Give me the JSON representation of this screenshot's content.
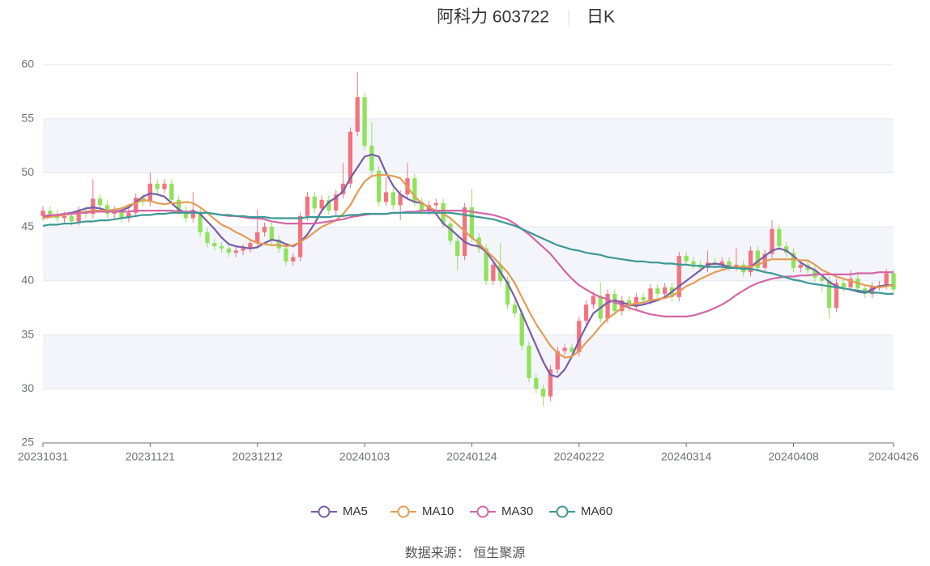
{
  "chart_data": {
    "type": "candlestick",
    "title": "阿科力 603722",
    "period": "日K",
    "source": "数据来源： 恒生聚源",
    "up_color": "#f2737f",
    "down_color": "#8fe25a",
    "split_area": true,
    "ylim": [
      25,
      60
    ],
    "yticks": [
      25,
      30,
      35,
      40,
      45,
      50,
      55,
      60
    ],
    "categories": [
      "20231031",
      null,
      null,
      null,
      null,
      null,
      null,
      null,
      null,
      null,
      null,
      null,
      null,
      null,
      null,
      "20231121",
      null,
      null,
      null,
      null,
      null,
      null,
      null,
      null,
      null,
      null,
      null,
      null,
      null,
      null,
      "20231212",
      null,
      null,
      null,
      null,
      null,
      null,
      null,
      null,
      null,
      null,
      null,
      null,
      null,
      null,
      "20240103",
      null,
      null,
      null,
      null,
      null,
      null,
      null,
      null,
      null,
      null,
      null,
      null,
      null,
      null,
      "20240124",
      null,
      null,
      null,
      null,
      null,
      null,
      null,
      null,
      null,
      null,
      null,
      null,
      null,
      null,
      "20240222",
      null,
      null,
      null,
      null,
      null,
      null,
      null,
      null,
      null,
      null,
      null,
      null,
      null,
      null,
      "20240314",
      null,
      null,
      null,
      null,
      null,
      null,
      null,
      null,
      null,
      null,
      null,
      null,
      null,
      null,
      "20240408",
      null,
      null,
      null,
      null,
      null,
      null,
      null,
      null,
      null,
      null,
      null,
      null,
      null,
      "20240426"
    ],
    "open": [
      46.0,
      46.5,
      46.2,
      45.8,
      46.0,
      45.5,
      46.5,
      46.2,
      47.6,
      47.0,
      46.2,
      46.5,
      45.8,
      46.3,
      47.7,
      47.3,
      49.0,
      48.5,
      49.0,
      47.5,
      46.5,
      45.8,
      46.3,
      44.5,
      43.5,
      43.2,
      43.0,
      42.6,
      42.8,
      43.0,
      43.5,
      44.5,
      45.0,
      43.8,
      43.0,
      41.8,
      42.2,
      46.0,
      47.8,
      46.7,
      47.5,
      46.5,
      48.0,
      49.0,
      53.8,
      57.0,
      52.5,
      50.2,
      47.3,
      48.2,
      47.0,
      48.0,
      49.5,
      47.3,
      46.5,
      47.0,
      47.2,
      45.3,
      43.7,
      42.3,
      46.8,
      44.0,
      43.0,
      40.0,
      41.5,
      40.0,
      37.8,
      37.0,
      34.0,
      31.0,
      30.0,
      29.3,
      31.8,
      33.5,
      33.8,
      33.4,
      36.3,
      37.8,
      38.6,
      36.5,
      38.8,
      37.2,
      38.2,
      37.6,
      38.5,
      38.2,
      39.3,
      38.8,
      39.4,
      38.5,
      42.3,
      41.8,
      41.5,
      41.2,
      41.7,
      41.5,
      41.8,
      41.3,
      41.5,
      40.8,
      42.8,
      41.2,
      42.5,
      44.8,
      43.2,
      42.6,
      41.2,
      41.5,
      41.0,
      40.3,
      40.0,
      37.5,
      39.8,
      39.4,
      40.2,
      39.3,
      38.8,
      39.5,
      39.6,
      40.7
    ],
    "close": [
      46.5,
      46.2,
      45.8,
      46.0,
      45.5,
      46.5,
      46.2,
      47.6,
      47.0,
      46.2,
      46.5,
      45.8,
      46.3,
      47.7,
      47.3,
      49.0,
      48.5,
      49.0,
      47.5,
      46.5,
      45.8,
      46.3,
      44.5,
      43.5,
      43.2,
      43.0,
      42.6,
      42.8,
      43.0,
      43.5,
      44.5,
      45.0,
      43.8,
      43.0,
      41.8,
      42.2,
      46.0,
      47.8,
      46.7,
      47.5,
      46.5,
      48.0,
      49.0,
      53.8,
      57.0,
      52.5,
      50.2,
      47.3,
      48.2,
      47.0,
      48.0,
      49.5,
      47.3,
      46.5,
      47.0,
      47.2,
      45.3,
      43.7,
      42.3,
      46.8,
      44.0,
      43.0,
      40.0,
      41.5,
      40.0,
      37.8,
      37.0,
      34.0,
      31.0,
      30.0,
      29.3,
      31.8,
      33.5,
      33.8,
      33.4,
      36.3,
      37.8,
      38.6,
      36.5,
      38.8,
      37.2,
      38.2,
      37.6,
      38.5,
      38.2,
      39.3,
      38.8,
      39.4,
      38.5,
      42.3,
      41.8,
      41.5,
      41.2,
      41.7,
      41.5,
      41.8,
      41.3,
      41.5,
      40.8,
      42.8,
      41.2,
      42.5,
      44.8,
      43.2,
      42.6,
      41.2,
      41.5,
      41.0,
      40.3,
      40.0,
      37.5,
      39.8,
      39.4,
      40.2,
      39.3,
      38.8,
      39.5,
      39.6,
      40.7,
      39.2
    ],
    "low": [
      45.6,
      45.8,
      45.4,
      45.4,
      45.1,
      45.1,
      45.8,
      45.8,
      46.6,
      45.8,
      45.8,
      45.4,
      45.4,
      45.9,
      46.9,
      46.9,
      48.1,
      48.1,
      47.1,
      46.1,
      45.4,
      45.4,
      44.1,
      43.1,
      42.8,
      42.6,
      42.2,
      42.2,
      42.4,
      42.6,
      43.1,
      44.1,
      43.4,
      42.6,
      41.4,
      41.4,
      41.8,
      45.6,
      46.3,
      46.3,
      46.1,
      46.1,
      47.6,
      48.6,
      53.4,
      52.1,
      49.8,
      46.9,
      46.9,
      46.6,
      45.6,
      47.6,
      46.9,
      46.1,
      46.1,
      46.6,
      44.9,
      43.3,
      41.0,
      41.9,
      43.6,
      42.6,
      39.6,
      39.6,
      39.6,
      37.4,
      36.6,
      33.6,
      30.6,
      29.6,
      28.4,
      28.9,
      31.4,
      33.1,
      33.0,
      33.0,
      35.9,
      37.4,
      36.1,
      36.1,
      36.8,
      36.8,
      37.2,
      37.2,
      37.8,
      37.8,
      38.4,
      38.4,
      38.1,
      38.1,
      41.4,
      41.1,
      40.8,
      40.8,
      41.1,
      41.1,
      40.9,
      40.9,
      40.4,
      40.4,
      40.8,
      40.8,
      42.1,
      42.8,
      42.2,
      40.8,
      40.8,
      40.6,
      39.9,
      39.0,
      36.5,
      37.1,
      39.0,
      39.0,
      38.9,
      38.4,
      38.4,
      39.1,
      39.2,
      38.8
    ],
    "high": [
      46.9,
      46.9,
      46.6,
      46.4,
      46.4,
      46.9,
      46.9,
      49.4,
      48.0,
      47.4,
      46.9,
      46.9,
      46.7,
      48.1,
      48.1,
      50.0,
      49.4,
      49.4,
      49.4,
      47.9,
      46.9,
      48.2,
      46.7,
      44.9,
      43.9,
      43.6,
      43.4,
      43.2,
      43.4,
      43.9,
      46.6,
      45.4,
      45.4,
      44.2,
      43.4,
      42.6,
      46.4,
      48.2,
      48.2,
      47.9,
      47.9,
      48.4,
      50.9,
      54.2,
      59.3,
      57.4,
      54.7,
      50.6,
      49.6,
      48.6,
      48.4,
      50.9,
      49.9,
      47.7,
      47.4,
      47.6,
      47.6,
      45.7,
      44.1,
      47.2,
      48.5,
      44.4,
      43.4,
      41.9,
      43.5,
      40.4,
      38.2,
      37.4,
      34.4,
      31.4,
      30.4,
      32.2,
      33.9,
      34.2,
      34.2,
      36.7,
      38.2,
      39.0,
      39.9,
      39.2,
      39.2,
      38.6,
      38.6,
      38.9,
      38.9,
      39.7,
      39.7,
      39.8,
      39.8,
      42.7,
      42.7,
      42.2,
      41.9,
      42.8,
      42.1,
      42.2,
      42.2,
      43.0,
      41.9,
      43.2,
      43.2,
      42.9,
      45.6,
      45.2,
      43.6,
      43.0,
      41.9,
      41.9,
      41.4,
      40.7,
      40.4,
      40.2,
      40.2,
      41.0,
      40.6,
      39.7,
      39.9,
      40.0,
      41.1,
      41.1
    ],
    "series": [
      {
        "name": "MA5",
        "color": "#7a5ca8",
        "values": [
          46,
          46,
          46.1,
          46.2,
          46.3,
          46.5,
          46.7,
          46.8,
          46.7,
          46.5,
          46.4,
          46.5,
          46.8,
          47.3,
          47.8,
          48.1,
          48,
          47.8,
          47.2,
          46.6,
          46.3,
          46.5,
          46.2,
          45.5,
          44.8,
          44,
          43.4,
          43.2,
          43.1,
          43,
          43.1,
          43.5,
          43.8,
          43.7,
          43.4,
          43.2,
          43.6,
          44.3,
          45.3,
          46.5,
          47.3,
          47.7,
          48.3,
          49.5,
          50.5,
          51.5,
          51.7,
          51.5,
          50,
          48.8,
          48,
          47.6,
          47.3,
          47.2,
          46.8,
          46.2,
          45.3,
          44.8,
          44.2,
          43.6,
          43.3,
          43.2,
          42.7,
          41.8,
          40.8,
          39.8,
          38.5,
          37,
          35.5,
          34,
          32.5,
          31.3,
          31.1,
          31.8,
          33,
          34.5,
          35.8,
          37,
          37.5,
          38,
          38.2,
          38,
          37.8,
          37.7,
          37.8,
          38,
          38.2,
          38.5,
          39,
          39.5,
          40,
          40.5,
          41,
          41.5,
          41.6,
          41.5,
          41.3,
          41.2,
          41.2,
          41.3,
          41.8,
          42.3,
          42.8,
          43,
          42.8,
          42.3,
          41.7,
          41.3,
          41,
          40.5,
          39.9,
          39.5,
          39.3,
          39.2,
          39,
          38.9,
          39.2,
          39.5,
          39.6,
          39.6
        ]
      },
      {
        "name": "MA10",
        "color": "#e39c55",
        "values": [
          45.8,
          45.9,
          46,
          46.1,
          46.2,
          46.3,
          46.4,
          46.5,
          46.5,
          46.5,
          46.6,
          46.7,
          47,
          47.2,
          47.5,
          47.4,
          47.2,
          47.1,
          47.2,
          47.2,
          47.3,
          47.2,
          46.8,
          46.3,
          45.7,
          45.2,
          44.9,
          44.5,
          44.2,
          43.8,
          43.5,
          43.4,
          43.3,
          43.3,
          43.2,
          43.3,
          43.6,
          44,
          44.5,
          45,
          45.3,
          45.6,
          46.2,
          47,
          48.2,
          49.2,
          49.7,
          49.8,
          49.8,
          49.7,
          49.5,
          48.7,
          47.8,
          47.2,
          46.8,
          46.5,
          46.2,
          45.8,
          45.2,
          44.6,
          44,
          43.5,
          42.8,
          42.2,
          41.5,
          40.8,
          39.8,
          38.5,
          37.2,
          36,
          35,
          34,
          33.3,
          32.9,
          33,
          33.5,
          34.3,
          35,
          35.8,
          36.5,
          37,
          37.5,
          37.8,
          37.9,
          38,
          38.2,
          38.3,
          38.4,
          38.6,
          39,
          39.5,
          39.8,
          40.2,
          40.5,
          40.8,
          41,
          41.2,
          41.3,
          41.3,
          41.3,
          41.5,
          41.8,
          42,
          42,
          42,
          42,
          41.9,
          41.9,
          41.5,
          41,
          40.7,
          40.4,
          40.2,
          40,
          39.8,
          39.6,
          39.5,
          39.4,
          39.5,
          39.6
        ]
      },
      {
        "name": "MA30",
        "color": "#d465a6",
        "values": [
          46,
          46.1,
          46.1,
          46.2,
          46.2,
          46.3,
          46.3,
          46.4,
          46.4,
          46.4,
          46.4,
          46.4,
          46.4,
          46.5,
          46.5,
          46.5,
          46.5,
          46.5,
          46.5,
          46.4,
          46.4,
          46.4,
          46.3,
          46.3,
          46.2,
          46.1,
          46,
          46,
          45.9,
          45.8,
          45.8,
          45.7,
          45.5,
          45.4,
          45.3,
          45.3,
          45.3,
          45.3,
          45.3,
          45.4,
          45.5,
          45.6,
          45.7,
          45.9,
          46,
          46.1,
          46.2,
          46.2,
          46.2,
          46.3,
          46.3,
          46.4,
          46.4,
          46.5,
          46.5,
          46.5,
          46.5,
          46.5,
          46.5,
          46.5,
          46.4,
          46.3,
          46.2,
          46.1,
          45.9,
          45.7,
          45.3,
          44.8,
          44.3,
          43.7,
          43.1,
          42.5,
          41.7,
          40.9,
          40.2,
          39.6,
          39.2,
          38.8,
          38.5,
          38.3,
          38,
          37.8,
          37.5,
          37.3,
          37.1,
          36.9,
          36.8,
          36.7,
          36.7,
          36.7,
          36.7,
          36.8,
          37,
          37.2,
          37.5,
          37.8,
          38.2,
          38.7,
          39.1,
          39.5,
          39.8,
          40,
          40.2,
          40.3,
          40.4,
          40.4,
          40.5,
          40.5,
          40.6,
          40.6,
          40.6,
          40.6,
          40.6,
          40.6,
          40.7,
          40.7,
          40.7,
          40.8,
          40.8,
          40.8
        ]
      },
      {
        "name": "MA60",
        "color": "#3d9896",
        "values": [
          45.1,
          45.2,
          45.2,
          45.3,
          45.3,
          45.4,
          45.5,
          45.5,
          45.6,
          45.6,
          45.7,
          45.8,
          45.9,
          46,
          46.1,
          46.1,
          46.2,
          46.2,
          46.3,
          46.3,
          46.3,
          46.3,
          46.3,
          46.3,
          46.2,
          46.1,
          46.1,
          46,
          46,
          45.9,
          45.9,
          45.9,
          45.8,
          45.8,
          45.8,
          45.8,
          45.8,
          45.9,
          45.9,
          45.9,
          45.9,
          46,
          46,
          46.1,
          46.1,
          46.2,
          46.2,
          46.2,
          46.2,
          46.3,
          46.3,
          46.3,
          46.3,
          46.3,
          46.3,
          46.3,
          46.3,
          46.3,
          46.2,
          46.1,
          46,
          45.9,
          45.8,
          45.7,
          45.5,
          45.3,
          45.1,
          44.8,
          44.5,
          44.2,
          43.9,
          43.6,
          43.3,
          43.1,
          42.9,
          42.8,
          42.6,
          42.5,
          42.4,
          42.2,
          42.1,
          42,
          41.9,
          41.8,
          41.8,
          41.7,
          41.7,
          41.6,
          41.6,
          41.5,
          41.5,
          41.4,
          41.4,
          41.3,
          41.3,
          41.3,
          41.2,
          41.2,
          41.1,
          41.1,
          41,
          40.8,
          40.7,
          40.5,
          40.3,
          40.1,
          40,
          39.8,
          39.7,
          39.6,
          39.5,
          39.4,
          39.3,
          39.2,
          39.1,
          39,
          38.9,
          38.9,
          38.8,
          38.8
        ]
      }
    ]
  }
}
